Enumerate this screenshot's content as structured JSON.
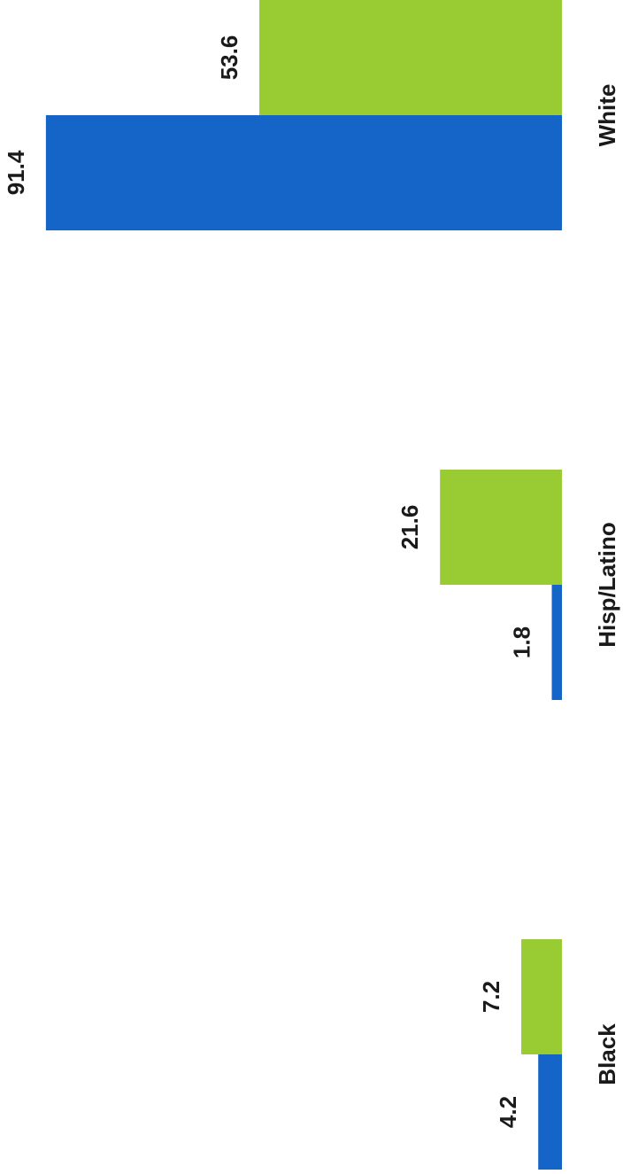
{
  "chart_data": {
    "type": "bar",
    "orientation": "rotated",
    "categories": [
      "Black",
      "Hisp/Latino",
      "White"
    ],
    "series": [
      {
        "values": [
          4.2,
          1.8,
          91.4
        ],
        "color": "#1565c8"
      },
      {
        "values": [
          7.2,
          21.6,
          53.6
        ],
        "color": "#99cc33"
      }
    ],
    "ylim": [
      0,
      100
    ],
    "grid": false,
    "legend": "none"
  }
}
